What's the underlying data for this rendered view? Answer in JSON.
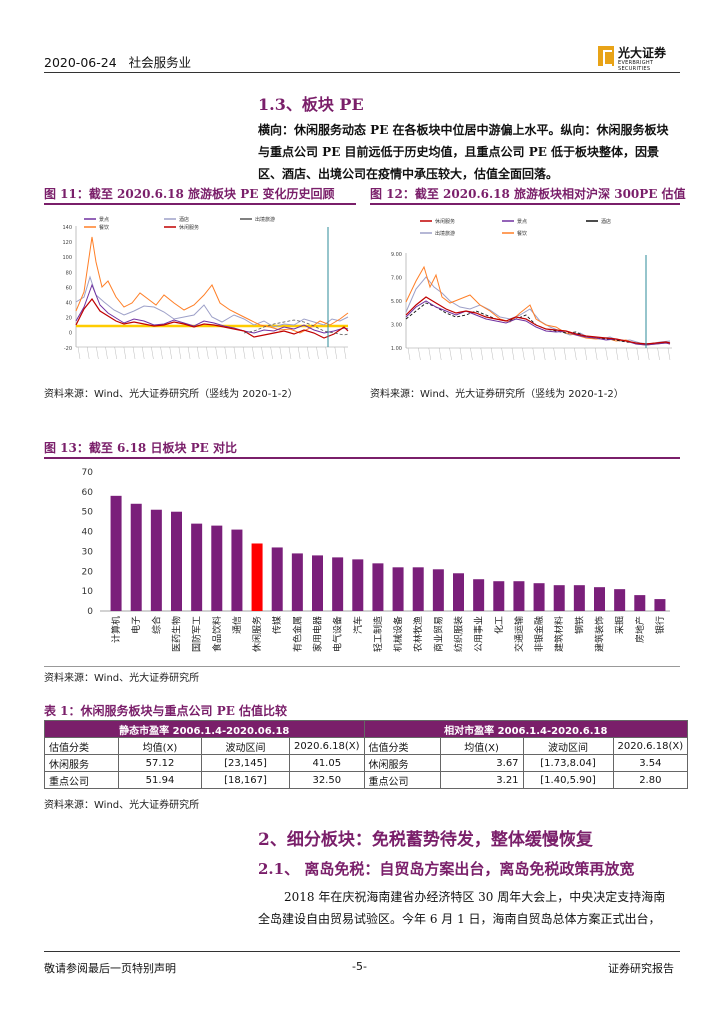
{
  "header": {
    "date": "2020-06-24",
    "industry": "社会服务业",
    "logo_cn": "光大证券",
    "logo_en": "EVERBRIGHT SECURITIES"
  },
  "section13": {
    "title": "1.3、板块 PE",
    "para": "横向：休闲服务动态 PE 在各板块中位居中游偏上水平。纵向：休闲服务板块与重点公司 PE 目前远低于历史均值，且重点公司 PE 低于板块整体，因景区、酒店、出境公司在疫情中承压较大，估值全面回落。"
  },
  "fig11": {
    "title": "图 11：截至 2020.6.18 旅游板块 PE 变化历史回顾",
    "legend": [
      "景点",
      "酒店",
      "出境旅游",
      "餐饮",
      "休闲服务"
    ],
    "legend_colors": [
      "#7030a0",
      "#9da0c8",
      "#555555",
      "#ff7f27",
      "#c00000"
    ],
    "yticks": [
      "140",
      "120",
      "100",
      "80",
      "60",
      "40",
      "20",
      "0",
      "-20"
    ],
    "source": "资料来源：Wind、光大证券研究所（竖线为 2020-1-2）"
  },
  "fig12": {
    "title": "图 12：截至 2020.6.18 旅游板块相对沪深 300PE 估值",
    "legend": [
      "休闲服务",
      "景点",
      "酒店",
      "出境旅游",
      "餐饮"
    ],
    "legend_colors": [
      "#c00000",
      "#7030a0",
      "#111111",
      "#9da0c8",
      "#ff7f27"
    ],
    "yticks": [
      "9.00",
      "7.00",
      "5.00",
      "3.00",
      "1.00"
    ],
    "source": "资料来源：Wind、光大证券研究所（竖线为 2020-1-2）"
  },
  "fig13": {
    "title": "图 13：截至 6.18 日板块 PE 对比",
    "source": "资料来源：Wind、光大证券研究所"
  },
  "chart_data": {
    "type": "bar",
    "categories": [
      "计算机",
      "电子",
      "综合",
      "医药生物",
      "国防军工",
      "食品饮料",
      "通信",
      "休闲服务",
      "传媒",
      "有色金属",
      "家用电器",
      "电气设备",
      "汽车",
      "轻工制造",
      "机械设备",
      "农林牧渔",
      "商业贸易",
      "纺织服装",
      "公用事业",
      "化工",
      "交通运输",
      "非银金融",
      "建筑材料",
      "钢铁",
      "建筑装饰",
      "采掘",
      "房地产",
      "银行"
    ],
    "values": [
      58,
      54,
      51,
      50,
      44,
      43,
      41,
      34,
      32,
      29,
      28,
      27,
      26,
      24,
      22,
      22,
      21,
      19,
      16,
      15,
      15,
      14,
      13,
      13,
      12,
      11,
      8,
      6
    ],
    "highlight_index": 7,
    "colors": {
      "bar": "#7a1f7a",
      "highlight": "#ff0000"
    },
    "yticks": [
      0,
      10,
      20,
      30,
      40,
      50,
      60,
      70
    ],
    "ylim": [
      0,
      70
    ]
  },
  "table1": {
    "title": "表 1：休闲服务板块与重点公司 PE 估值比较",
    "band_left": "静态市盈率 2006.1.4-2020.06.18",
    "band_right": "相对市盈率 2006.1.4-2020.6.18",
    "headers": [
      "估值分类",
      "均值(X)",
      "波动区间",
      "2020.6.18(X)",
      "估值分类",
      "均值(X)",
      "波动区间",
      "2020.6.18(X)"
    ],
    "rows": [
      [
        "休闲服务",
        "57.12",
        "[23,145]",
        "41.05",
        "休闲服务",
        "3.67",
        "[1.73,8.04]",
        "3.54"
      ],
      [
        "重点公司",
        "51.94",
        "[18,167]",
        "32.50",
        "重点公司",
        "3.21",
        "[1.40,5.90]",
        "2.80"
      ]
    ],
    "source": "资料来源：Wind、光大证券研究所"
  },
  "section2": {
    "title": "2、细分板块：免税蓄势待发，整体缓慢恢复",
    "sub": "2.1、  离岛免税：自贸岛方案出台，离岛免税政策再放宽",
    "para_line1": "2018 年在庆祝海南建省办经济特区 30 周年大会上，中央决定支持海南",
    "para_line2": "全岛建设自由贸易试验区。今年 6 月 1 日，海南自贸岛总体方案正式出台，"
  },
  "footer": {
    "left": "敬请参阅最后一页特别声明",
    "center": "-5-",
    "right": "证券研究报告"
  }
}
